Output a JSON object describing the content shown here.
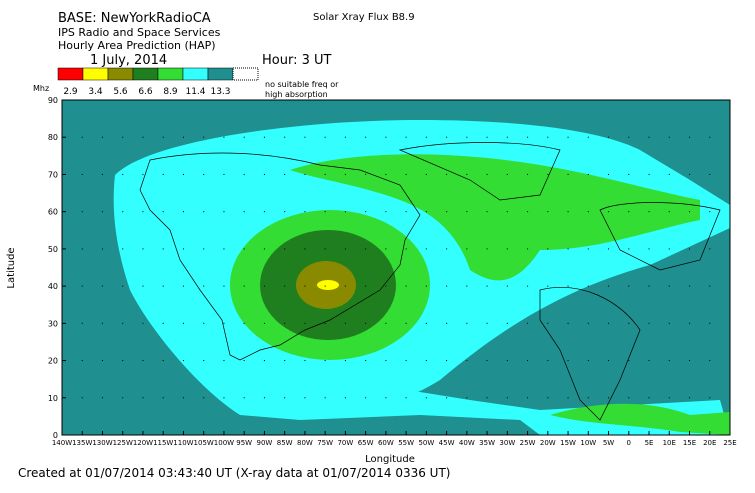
{
  "header": {
    "base": "BASE: NewYorkRadioCA",
    "org": "IPS Radio and Space Services",
    "product": "Hourly Area Prediction (HAP)",
    "date": "1 July, 2014",
    "hour": "Hour:  3 UT",
    "flux": "Solar Xray Flux B8.9"
  },
  "legend": {
    "unit": "Mhz",
    "items": [
      {
        "label": "2.9",
        "color": "#ff0000"
      },
      {
        "label": "3.4",
        "color": "#ffff00"
      },
      {
        "label": "5.6",
        "color": "#8a8a00"
      },
      {
        "label": "6.6",
        "color": "#1f7f1f"
      },
      {
        "label": "8.9",
        "color": "#33dd33"
      },
      {
        "label": "11.4",
        "color": "#33ffff"
      },
      {
        "label": "13.3",
        "color": "#1f8f8f"
      }
    ],
    "none_label": [
      "no suitable freq or",
      "high absorption"
    ]
  },
  "axes": {
    "ylabel": "Latitude",
    "xlabel": "Longitude",
    "yticks": [
      "0",
      "10",
      "20",
      "30",
      "40",
      "50",
      "60",
      "70",
      "80",
      "90"
    ],
    "xticks": [
      "140W",
      "135W",
      "130W",
      "125W",
      "120W",
      "115W",
      "110W",
      "105W",
      "100W",
      "95W",
      "90W",
      "85W",
      "80W",
      "75W",
      "70W",
      "65W",
      "60W",
      "55W",
      "50W",
      "45W",
      "40W",
      "35W",
      "30W",
      "25W",
      "20W",
      "15W",
      "10W",
      "5W",
      "0",
      "5E",
      "10E",
      "15E",
      "20E",
      "25E"
    ]
  },
  "footer": "Created at 01/07/2014 03:43:40 UT (X-ray data at 01/07/2014 0336 UT)"
}
